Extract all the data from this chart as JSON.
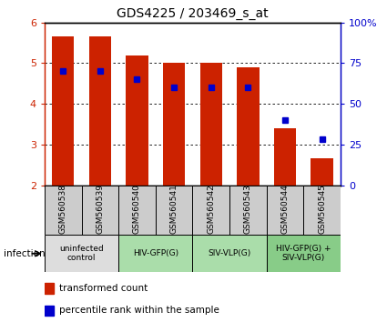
{
  "title": "GDS4225 / 203469_s_at",
  "samples": [
    "GSM560538",
    "GSM560539",
    "GSM560540",
    "GSM560541",
    "GSM560542",
    "GSM560543",
    "GSM560544",
    "GSM560545"
  ],
  "bar_values": [
    5.65,
    5.65,
    5.2,
    5.0,
    5.0,
    4.9,
    3.4,
    2.65
  ],
  "bar_base": 2.0,
  "percentile_values": [
    70,
    70,
    65,
    60,
    60,
    60,
    40,
    28
  ],
  "ylim_left": [
    2,
    6
  ],
  "ylim_right": [
    0,
    100
  ],
  "yticks_left": [
    2,
    3,
    4,
    5,
    6
  ],
  "yticks_right": [
    0,
    25,
    50,
    75,
    100
  ],
  "bar_color": "#cc2200",
  "dot_color": "#0000cc",
  "bar_width": 0.6,
  "groups": [
    {
      "label": "uninfected\ncontrol",
      "indices": [
        0,
        1
      ],
      "color": "#dddddd"
    },
    {
      "label": "HIV-GFP(G)",
      "indices": [
        2,
        3
      ],
      "color": "#aaddaa"
    },
    {
      "label": "SIV-VLP(G)",
      "indices": [
        4,
        5
      ],
      "color": "#aaddaa"
    },
    {
      "label": "HIV-GFP(G) +\nSIV-VLP(G)",
      "indices": [
        6,
        7
      ],
      "color": "#88cc88"
    }
  ],
  "infection_label": "infection",
  "legend_bar_label": "transformed count",
  "legend_dot_label": "percentile rank within the sample",
  "sample_bg_color": "#cccccc",
  "left_axis_color": "#cc2200",
  "right_axis_color": "#0000cc"
}
